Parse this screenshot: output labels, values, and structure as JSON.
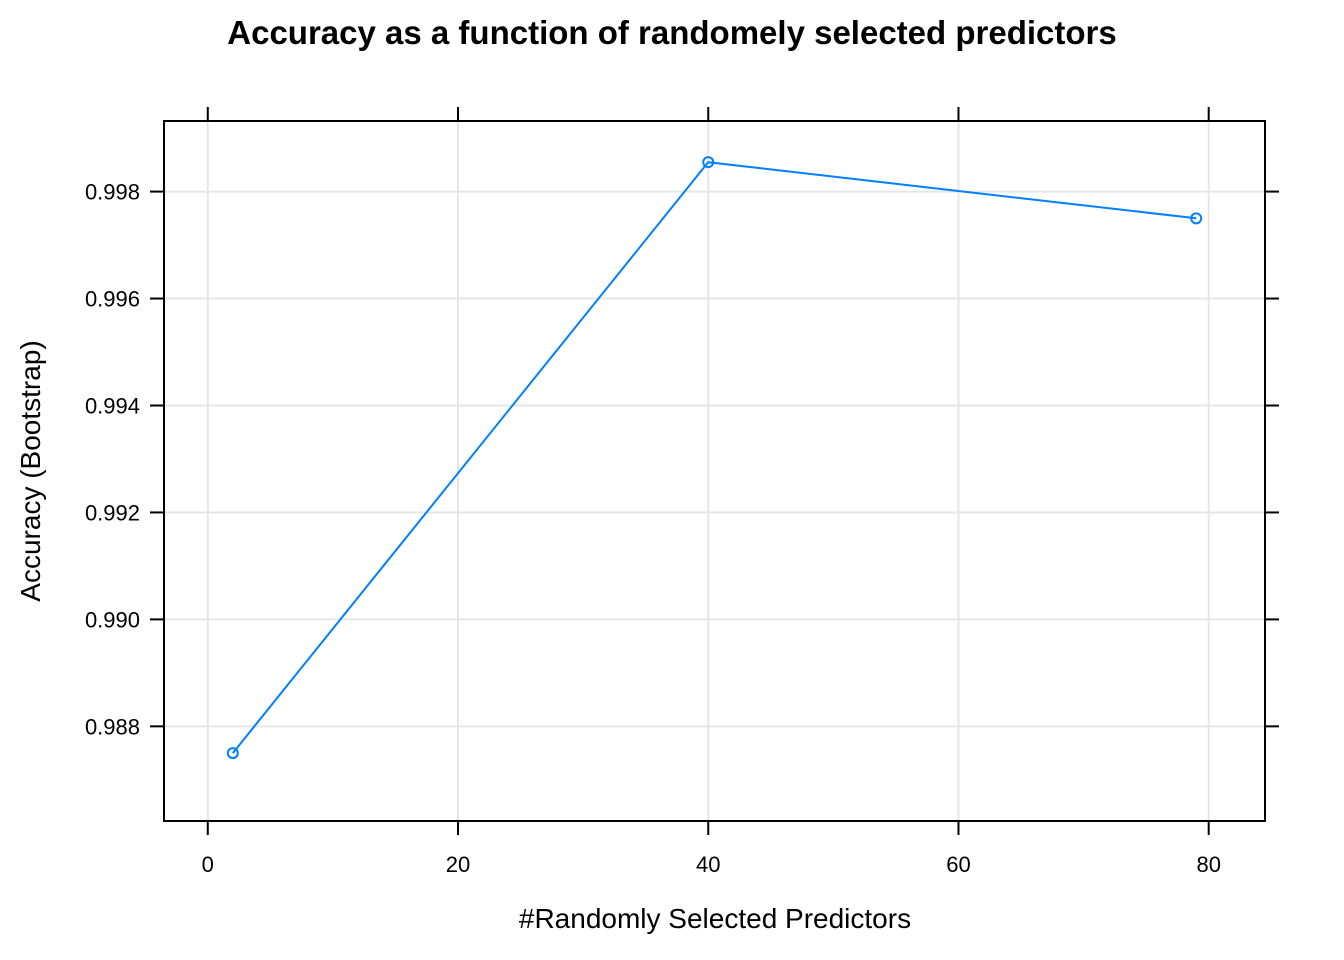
{
  "chart_data": {
    "type": "line",
    "title": "Accuracy as a function of randomely selected predictors",
    "xlabel": "#Randomly Selected Predictors",
    "ylabel": "Accuracy (Bootstrap)",
    "x": [
      2,
      40,
      79
    ],
    "series": [
      {
        "values": [
          0.9875,
          0.99855,
          0.9975
        ]
      }
    ],
    "xlim": [
      -3.5,
      84.5
    ],
    "ylim": [
      0.98623,
      0.99932
    ],
    "xticks": [
      0,
      20,
      40,
      60,
      80
    ],
    "xtick_labels": [
      "0",
      "20",
      "40",
      "60",
      "80"
    ],
    "yticks": [
      0.988,
      0.99,
      0.992,
      0.994,
      0.996,
      0.998
    ],
    "ytick_labels": [
      "0.988",
      "0.990",
      "0.992",
      "0.994",
      "0.996",
      "0.998"
    ],
    "grid": true,
    "colors": {
      "series": "#0080ff",
      "grid": "#e6e6e6",
      "axis": "#000000"
    }
  }
}
